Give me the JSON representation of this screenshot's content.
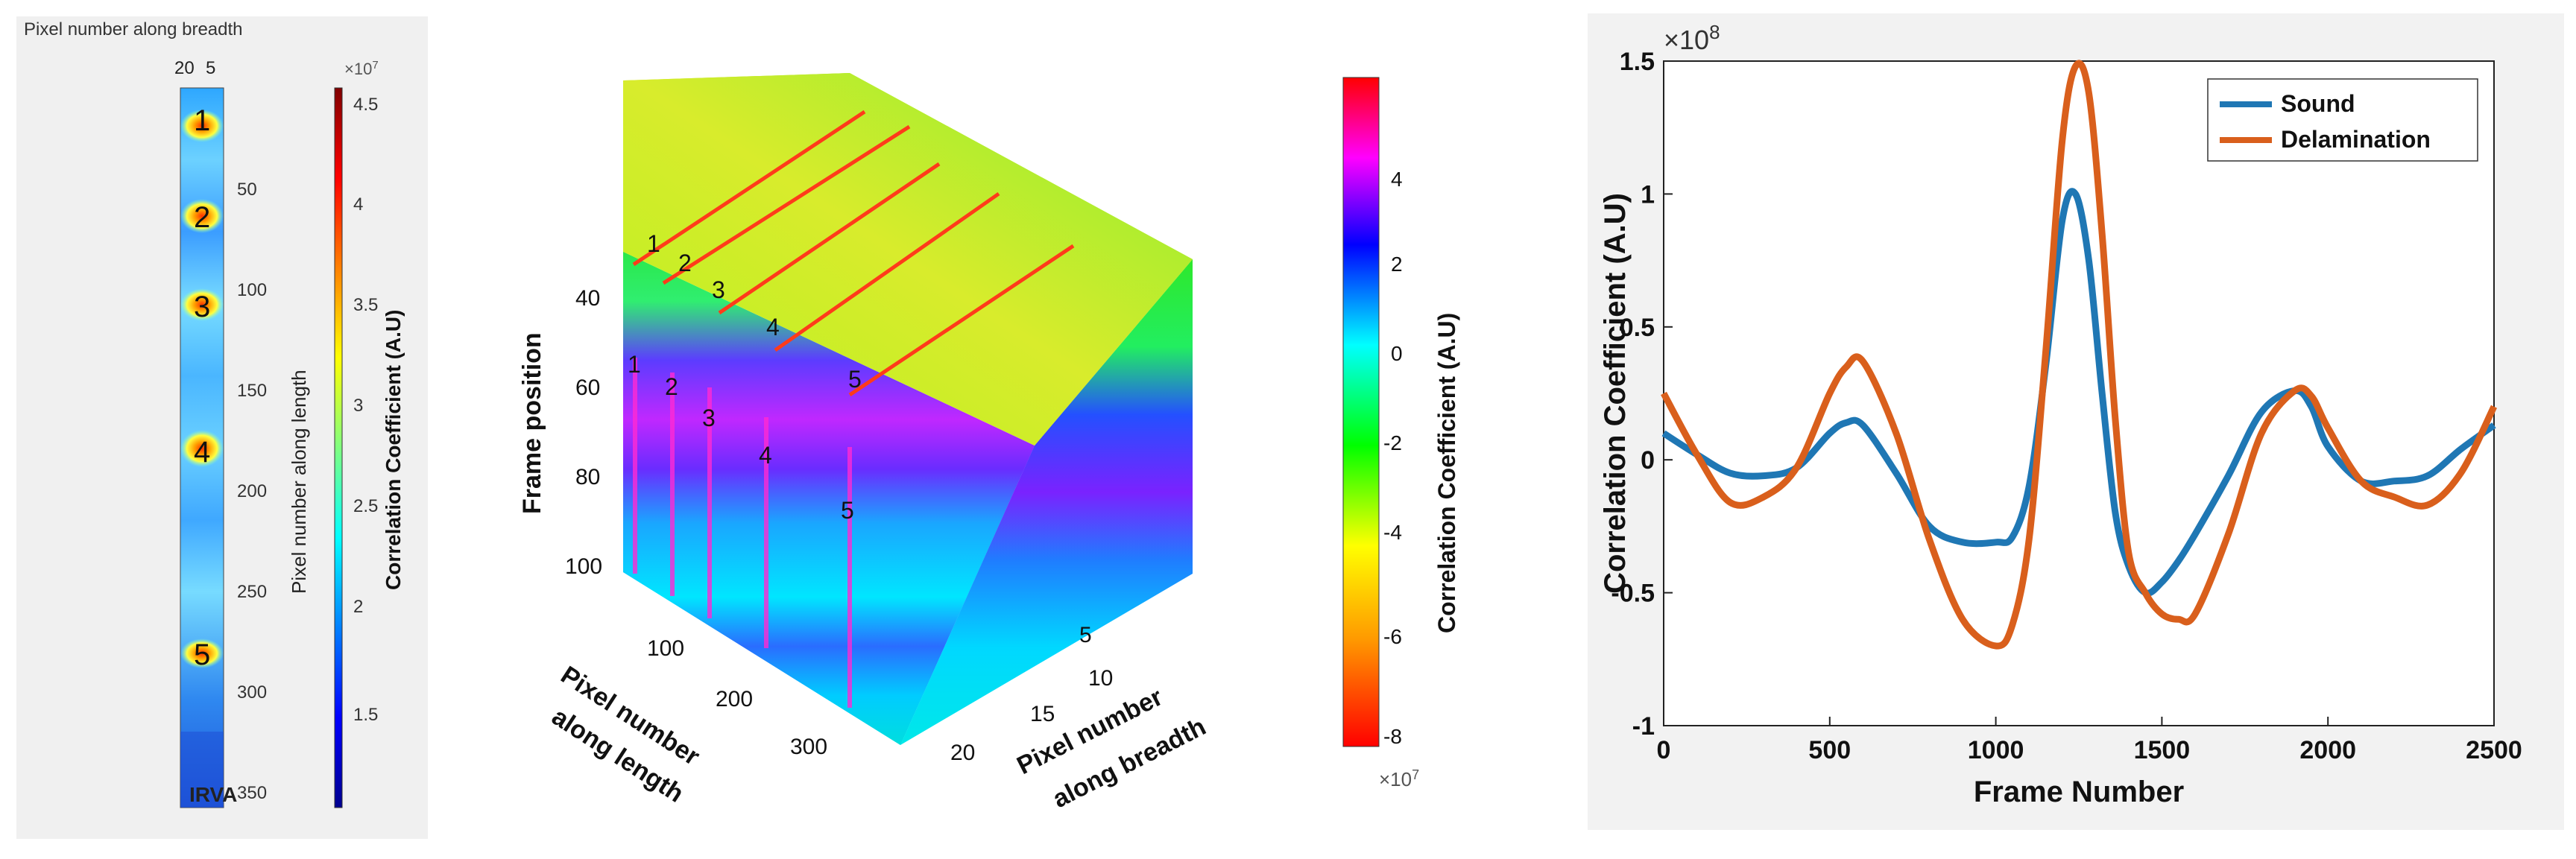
{
  "panel_a": {
    "title": "Pixel number along breadth",
    "top_ticks": [
      "20",
      "5"
    ],
    "y_ticks": [
      "50",
      "100",
      "150",
      "200",
      "250",
      "300",
      "350"
    ],
    "y_label": "Pixel number along length",
    "markers": [
      "1",
      "2",
      "3",
      "4",
      "5"
    ],
    "watermark": "IRVA",
    "colorbar": {
      "exponent": "×10",
      "exponent_power": "7",
      "ticks": [
        "4.5",
        "4",
        "3.5",
        "3",
        "2.5",
        "2",
        "1.5"
      ],
      "label": "Correlation Coefficient (A.U)"
    }
  },
  "panel_b": {
    "z_label": "Frame position",
    "z_ticks": [
      "40",
      "60",
      "80",
      "100"
    ],
    "x_label_line1": "Pixel number",
    "x_label_line2": "along length",
    "x_ticks": [
      "100",
      "200",
      "300"
    ],
    "y_label_line1": "Pixel number",
    "y_label_line2": "along breadth",
    "y_ticks": [
      "5",
      "10",
      "15",
      "20"
    ],
    "top_markers": [
      "1",
      "2",
      "3",
      "4",
      "5"
    ],
    "front_markers": [
      "1",
      "2",
      "3",
      "4",
      "5"
    ],
    "colorbar": {
      "ticks": [
        "4",
        "2",
        "0",
        "-2",
        "-4",
        "-6",
        "-8"
      ],
      "label": "Correlation Coefficient (A.U)",
      "exponent": "×10",
      "exponent_power": "7"
    }
  },
  "chart_data": {
    "type": "line",
    "title": "",
    "xlabel": "Frame Number",
    "ylabel": "Correlation Coefficient (A.U)",
    "y_exponent": "×10",
    "y_exponent_power": "8",
    "xlim": [
      0,
      2500
    ],
    "ylim": [
      -1,
      1.5
    ],
    "x_ticks": [
      "0",
      "500",
      "1000",
      "1500",
      "2000",
      "2500"
    ],
    "y_ticks": [
      "1.5",
      "1",
      "0.5",
      "0",
      "-0.5",
      "-1"
    ],
    "legend_position": "top-right",
    "x": [
      0,
      100,
      200,
      300,
      400,
      500,
      550,
      600,
      700,
      800,
      900,
      1000,
      1050,
      1100,
      1150,
      1200,
      1240,
      1280,
      1320,
      1360,
      1400,
      1450,
      1500,
      1550,
      1600,
      1700,
      1800,
      1900,
      1950,
      2000,
      2100,
      2200,
      2300,
      2400,
      2500
    ],
    "series": [
      {
        "name": "Sound",
        "color": "#1f77b4",
        "values": [
          0.1,
          0.02,
          -0.05,
          -0.06,
          -0.03,
          0.1,
          0.14,
          0.13,
          -0.05,
          -0.25,
          -0.31,
          -0.31,
          -0.29,
          -0.1,
          0.35,
          0.9,
          1.0,
          0.75,
          0.25,
          -0.2,
          -0.4,
          -0.5,
          -0.46,
          -0.38,
          -0.28,
          -0.06,
          0.18,
          0.26,
          0.2,
          0.05,
          -0.08,
          -0.08,
          -0.06,
          0.04,
          0.13
        ]
      },
      {
        "name": "Delamination",
        "color": "#d95f1c",
        "values": [
          0.25,
          0.02,
          -0.16,
          -0.14,
          -0.03,
          0.25,
          0.35,
          0.37,
          0.1,
          -0.3,
          -0.6,
          -0.7,
          -0.62,
          -0.3,
          0.4,
          1.2,
          1.48,
          1.38,
          0.85,
          0.15,
          -0.35,
          -0.5,
          -0.58,
          -0.6,
          -0.58,
          -0.28,
          0.1,
          0.26,
          0.24,
          0.12,
          -0.08,
          -0.14,
          -0.17,
          -0.05,
          0.2
        ]
      }
    ]
  }
}
